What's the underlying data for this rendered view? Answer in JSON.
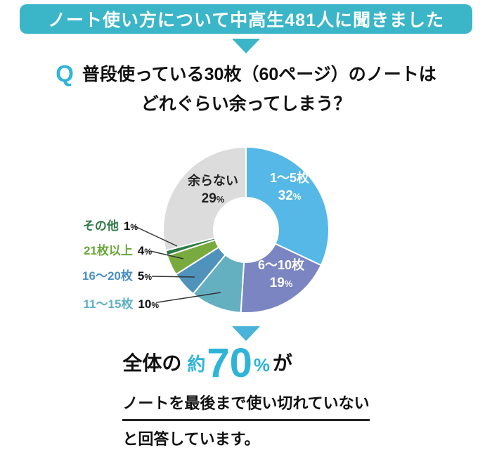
{
  "colors": {
    "banner_bg": "#3bb5c8",
    "arrow_top": "#3bb5c8",
    "arrow_bottom": "#4ab3da",
    "q_mark": "#2fb4d9",
    "big_number": "#2fb4d9",
    "text": "#111111"
  },
  "banner": {
    "text": "ノート使い方について中高生481人に聞きました"
  },
  "question": {
    "q_mark": "Q",
    "line1": "普段使っている30枚（60ページ）のノートは",
    "line2": "どれぐらい余ってしまう？"
  },
  "chart_data": {
    "type": "pie",
    "donut": true,
    "start_angle_deg": 0,
    "direction": "clockwise",
    "percent_sign": "%",
    "title": "普段使っている30枚（60ページ）のノートはどれぐらい余ってしまう？",
    "segments": [
      {
        "label": "1〜5枚",
        "value": 32,
        "color": "#55b8e6",
        "label_color": "#ffffff",
        "placement": "inside"
      },
      {
        "label": "6〜10枚",
        "value": 19,
        "color": "#7a85c1",
        "label_color": "#ffffff",
        "placement": "inside"
      },
      {
        "label": "11〜15枚",
        "value": 10,
        "color": "#64afc0",
        "label_color": "#5fb0c4",
        "placement": "outside"
      },
      {
        "label": "16〜20枚",
        "value": 5,
        "color": "#4f93bc",
        "label_color": "#4a90c4",
        "placement": "outside"
      },
      {
        "label": "21枚以上",
        "value": 4,
        "color": "#79aa3d",
        "label_color": "#6aa638",
        "placement": "outside"
      },
      {
        "label": "その他",
        "value": 1,
        "color": "#2e7a45",
        "label_color": "#2e7a45",
        "placement": "outside"
      },
      {
        "label": "余らない",
        "value": 29,
        "color": "#dcdcdd",
        "label_color": "#222222",
        "placement": "inside"
      }
    ]
  },
  "conclusion": {
    "prefix": "全体の",
    "approx": "約",
    "number": "70",
    "percent_sign": "%",
    "suffix": "が",
    "line2": "ノートを最後まで使い切れていない",
    "line3": "と回答しています。"
  }
}
